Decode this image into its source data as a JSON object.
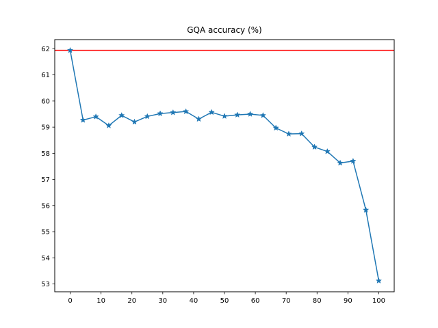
{
  "chart_data": {
    "type": "line",
    "title": "GQA accuracy (%)",
    "xlabel": "",
    "ylabel": "",
    "xlim": [
      -5,
      105
    ],
    "ylim": [
      52.7,
      62.35
    ],
    "x_ticks": [
      0,
      10,
      20,
      30,
      40,
      50,
      60,
      70,
      80,
      90,
      100
    ],
    "y_ticks": [
      53,
      54,
      55,
      56,
      57,
      58,
      59,
      60,
      61,
      62
    ],
    "grid": false,
    "legend": "none",
    "series": [
      {
        "color": "#1f77b4",
        "marker": "star",
        "x": [
          0,
          4.17,
          8.33,
          12.5,
          16.67,
          20.83,
          25,
          29.17,
          33.33,
          37.5,
          41.67,
          45.83,
          50,
          54.17,
          58.33,
          62.5,
          66.67,
          70.83,
          75,
          79.17,
          83.33,
          87.5,
          91.67,
          95.83,
          100
        ],
        "y": [
          61.94,
          59.27,
          59.4,
          59.06,
          59.45,
          59.2,
          59.41,
          59.52,
          59.56,
          59.6,
          59.31,
          59.57,
          59.42,
          59.47,
          59.5,
          59.45,
          58.97,
          58.74,
          58.75,
          58.24,
          58.07,
          57.63,
          57.7,
          55.83,
          53.12
        ]
      }
    ],
    "reference_lines": [
      {
        "orientation": "horizontal",
        "y": 61.94,
        "color": "#ff0000"
      }
    ]
  }
}
